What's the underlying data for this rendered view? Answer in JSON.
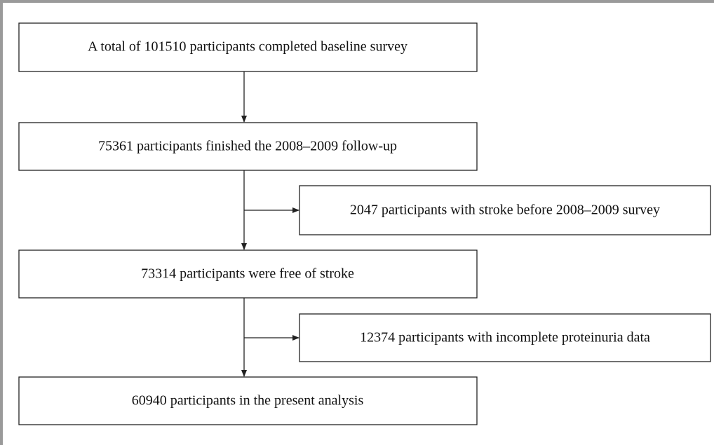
{
  "nodes": [
    {
      "label": "A total of 101510 participants completed baseline survey"
    },
    {
      "label": "75361 participants finished the 2008–2009 follow-up"
    },
    {
      "label": "2047 participants with stroke before 2008–2009 survey"
    },
    {
      "label": "73314 participants were free of stroke"
    },
    {
      "label": "12374 participants with incomplete proteinuria data"
    },
    {
      "label": "60940 participants in the present analysis"
    }
  ]
}
